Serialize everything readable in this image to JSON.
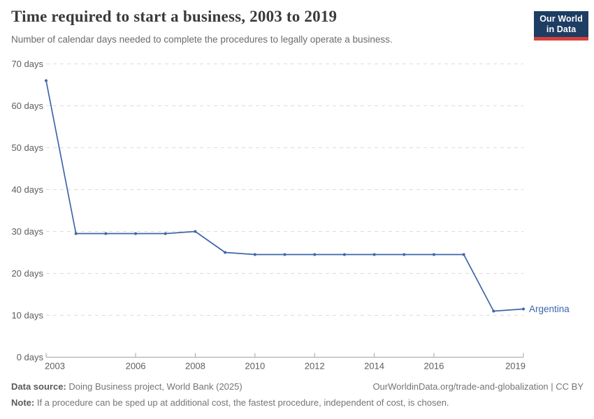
{
  "header": {
    "title": "Time required to start a business, 2003 to 2019",
    "subtitle": "Number of calendar days needed to complete the procedures to legally operate a business.",
    "logo": {
      "line1": "Our World",
      "line2": "in Data"
    }
  },
  "footer": {
    "source_label": "Data source:",
    "source_rest": " Doing Business project, World Bank (2025)",
    "attribution": "OurWorldinData.org/trade-and-globalization | CC BY",
    "note_label": "Note:",
    "note_rest": " If a procedure can be sped up at additional cost, the fastest procedure, independent of cost, is chosen."
  },
  "chart_data": {
    "type": "line",
    "title": "Time required to start a business, 2003 to 2019",
    "xlabel": "",
    "ylabel": "",
    "x": [
      2003,
      2004,
      2005,
      2006,
      2007,
      2008,
      2009,
      2010,
      2011,
      2012,
      2013,
      2014,
      2015,
      2016,
      2017,
      2018,
      2019
    ],
    "series": [
      {
        "name": "Argentina",
        "color": "#3e66aa",
        "values": [
          66,
          29.5,
          29.5,
          29.5,
          29.5,
          30,
          25,
          24.5,
          24.5,
          24.5,
          24.5,
          24.5,
          24.5,
          24.5,
          24.5,
          11,
          11.5
        ]
      }
    ],
    "xlim": [
      2003,
      2019
    ],
    "ylim": [
      0,
      70
    ],
    "xticks": [
      2003,
      2006,
      2008,
      2010,
      2012,
      2014,
      2016,
      2019
    ],
    "yticks": [
      0,
      10,
      20,
      30,
      40,
      50,
      60,
      70
    ],
    "ytick_suffix": " days",
    "grid": "horizontal-dashed",
    "legend": "end-of-line-label",
    "colors": {
      "grid": "#dcdcdc",
      "axis": "#a3a3a3",
      "tick_label": "#5e5e5e"
    }
  }
}
